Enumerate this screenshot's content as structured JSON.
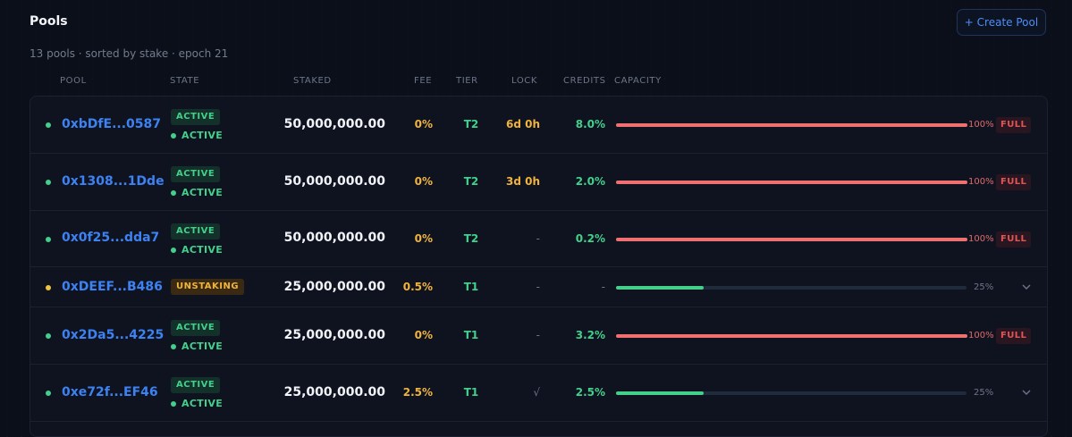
{
  "header": {
    "title": "Pools",
    "subtitle": "13 pools · sorted by stake · epoch 21",
    "create_button": "+ Create Pool"
  },
  "columns": {
    "pool": "POOL",
    "state": "STATE",
    "staked": "STAKED",
    "fee": "FEE",
    "tier": "TIER",
    "lock": "LOCK",
    "credits": "CREDITS",
    "capacity": "CAPACITY"
  },
  "colors": {
    "green": "#43d08b",
    "amber": "#f0b43c",
    "red": "#f07070",
    "blue": "#3d82f2"
  },
  "pools": [
    {
      "address": "0xbDfE...0587",
      "badge": "ACTIVE",
      "state": "ACTIVE",
      "staked": "50,000,000.00",
      "fee": "0%",
      "tier": "T2",
      "lock": "6d 0h",
      "credits": "8.0%",
      "capacity_pct": "100%",
      "capacity_value": 100,
      "full_label": "FULL"
    },
    {
      "address": "0x1308...1Dde",
      "badge": "ACTIVE",
      "state": "ACTIVE",
      "staked": "50,000,000.00",
      "fee": "0%",
      "tier": "T2",
      "lock": "3d 0h",
      "credits": "2.0%",
      "capacity_pct": "100%",
      "capacity_value": 100,
      "full_label": "FULL"
    },
    {
      "address": "0x0f25...dda7",
      "badge": "ACTIVE",
      "state": "ACTIVE",
      "staked": "50,000,000.00",
      "fee": "0%",
      "tier": "T2",
      "lock": "-",
      "credits": "0.2%",
      "capacity_pct": "100%",
      "capacity_value": 100,
      "full_label": "FULL"
    },
    {
      "address": "0xDEEF...B486",
      "badge": "UNSTAKING",
      "staked": "25,000,000.00",
      "fee": "0.5%",
      "tier": "T1",
      "lock": "-",
      "credits": "-",
      "capacity_pct": "25%",
      "capacity_value": 25
    },
    {
      "address": "0x2Da5...4225",
      "badge": "ACTIVE",
      "state": "ACTIVE",
      "staked": "25,000,000.00",
      "fee": "0%",
      "tier": "T1",
      "lock": "-",
      "credits": "3.2%",
      "capacity_pct": "100%",
      "capacity_value": 100,
      "full_label": "FULL"
    },
    {
      "address": "0xe72f...EF46",
      "badge": "ACTIVE",
      "state": "ACTIVE",
      "staked": "25,000,000.00",
      "fee": "2.5%",
      "tier": "T1",
      "lock": "√",
      "credits": "2.5%",
      "capacity_pct": "25%",
      "capacity_value": 25
    }
  ]
}
